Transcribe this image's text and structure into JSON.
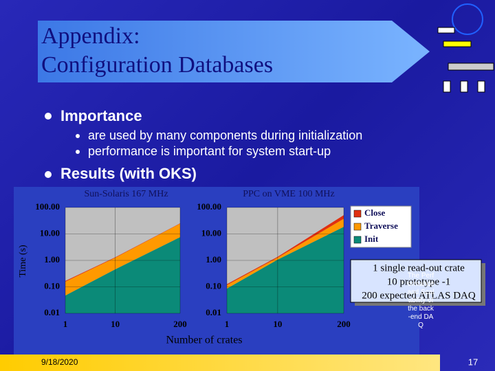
{
  "header": {
    "title_line1": "Appendix:",
    "title_line2": "Configuration Databases"
  },
  "bullets": [
    {
      "text": "Importance",
      "items": [
        "are used by many components during initialization",
        "performance is important for system start-up"
      ]
    },
    {
      "text": "Results (with OKS)"
    }
  ],
  "figure": {
    "y_label": "Time (s)",
    "x_label": "Number of crates",
    "annotation": [
      "1 single read-out crate",
      "10 prototype -1",
      "200 expected ATLAS DAQ"
    ],
    "notes": "The Performance and Scalability of the back-end DAQ"
  },
  "chart_data": [
    {
      "type": "area",
      "title": "Sun-Solaris 167 MHz",
      "x": [
        1,
        10,
        200
      ],
      "xlim": [
        1,
        200
      ],
      "xticks": [
        1,
        10,
        200
      ],
      "log_x": true,
      "ylim": [
        0.01,
        100
      ],
      "yticks": [
        {
          "value": 100,
          "label": "100.00"
        },
        {
          "value": 10,
          "label": "10.00"
        },
        {
          "value": 1,
          "label": "1.00"
        },
        {
          "value": 0.1,
          "label": "0.10"
        },
        {
          "value": 0.01,
          "label": "0.01"
        }
      ],
      "log_y": true,
      "stacked": true,
      "grid": true,
      "series": [
        {
          "name": "Init",
          "color": "#0b8a78",
          "values": [
            0.047,
            0.46,
            7.6
          ]
        },
        {
          "name": "Traverse",
          "color": "#ff9900",
          "values": [
            0.11,
            0.8,
            17
          ]
        },
        {
          "name": "Close",
          "color": "#e03010",
          "values": [
            0.01,
            0.05,
            0.6
          ]
        }
      ]
    },
    {
      "type": "area",
      "title": "PPC on VME 100 MHz",
      "x": [
        1,
        10,
        200
      ],
      "xlim": [
        1,
        200
      ],
      "xticks": [
        1,
        10,
        200
      ],
      "log_x": true,
      "ylim": [
        0.01,
        100
      ],
      "yticks": [
        {
          "value": 100,
          "label": "100.00"
        },
        {
          "value": 10,
          "label": "10.00"
        },
        {
          "value": 1,
          "label": "1.00"
        },
        {
          "value": 0.1,
          "label": "0.10"
        },
        {
          "value": 0.01,
          "label": "0.01"
        }
      ],
      "log_y": true,
      "stacked": true,
      "grid": true,
      "legend": "right",
      "series": [
        {
          "name": "Init",
          "color": "#0b8a78",
          "values": [
            0.086,
            1.07,
            18.6
          ]
        },
        {
          "name": "Traverse",
          "color": "#ff9900",
          "values": [
            0.03,
            0.2,
            19
          ]
        },
        {
          "name": "Close",
          "color": "#e03010",
          "values": [
            0.01,
            0.1,
            14
          ]
        }
      ]
    }
  ],
  "footer": {
    "date": "9/18/2020",
    "page": 17
  }
}
